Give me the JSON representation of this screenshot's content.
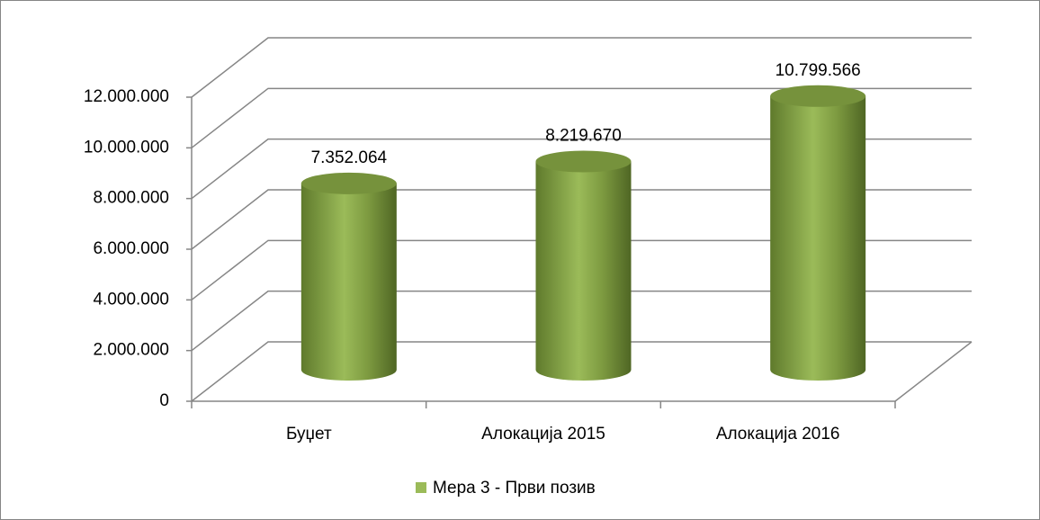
{
  "chart_data": {
    "type": "bar",
    "subtype": "3d-cylinder",
    "categories": [
      "Буџет",
      "Алокација 2015",
      "Алокација 2016"
    ],
    "series": [
      {
        "name": "Мера 3 - Први позив",
        "color": "#9bbb59",
        "values": [
          7352064,
          8219670,
          10799566
        ],
        "value_labels": [
          "7.352.064",
          "8.219.670",
          "10.799.566"
        ]
      }
    ],
    "ylim": [
      0,
      12000000
    ],
    "yticks": [
      0,
      {
        "value": 2000000,
        "label": "2.000.000"
      },
      {
        "value": 4000000,
        "label": "4.000.000"
      },
      {
        "value": 6000000,
        "label": "6.000.000"
      },
      {
        "value": 8000000,
        "label": "8.000.000"
      },
      {
        "value": 10000000,
        "label": "10.000.000"
      },
      {
        "value": 12000000,
        "label": "12.000.000"
      }
    ],
    "grid": true,
    "legend": "bottom"
  }
}
